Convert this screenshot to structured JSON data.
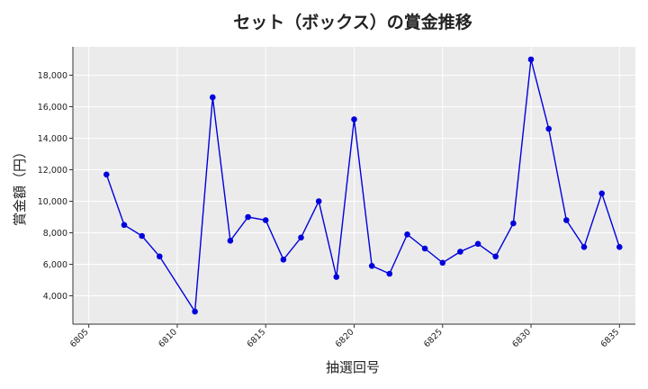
{
  "chart_data": {
    "type": "line",
    "title": "セット（ボックス）の賞金推移",
    "xlabel": "抽選回号",
    "ylabel": "賞金額（円）",
    "xlim": [
      6804.1,
      6835.9
    ],
    "ylim": [
      2200,
      19800
    ],
    "x_ticks": [
      6805,
      6810,
      6815,
      6820,
      6825,
      6830,
      6835
    ],
    "y_ticks": [
      4000,
      6000,
      8000,
      10000,
      12000,
      14000,
      16000,
      18000
    ],
    "grid": true,
    "series": [
      {
        "color": "#0000dd",
        "x": [
          6806,
          6807,
          6808,
          6809,
          6811,
          6812,
          6813,
          6814,
          6815,
          6816,
          6817,
          6818,
          6819,
          6820,
          6821,
          6822,
          6823,
          6824,
          6825,
          6826,
          6827,
          6828,
          6829,
          6830,
          6831,
          6832,
          6833,
          6834,
          6835
        ],
        "y": [
          11700,
          8500,
          7800,
          6500,
          3000,
          16600,
          7500,
          9000,
          8800,
          6300,
          7700,
          10000,
          5200,
          15200,
          5900,
          5400,
          7900,
          7000,
          6100,
          6800,
          7300,
          6500,
          8600,
          19000,
          14600,
          8800,
          7100,
          10500,
          7100
        ]
      }
    ]
  }
}
